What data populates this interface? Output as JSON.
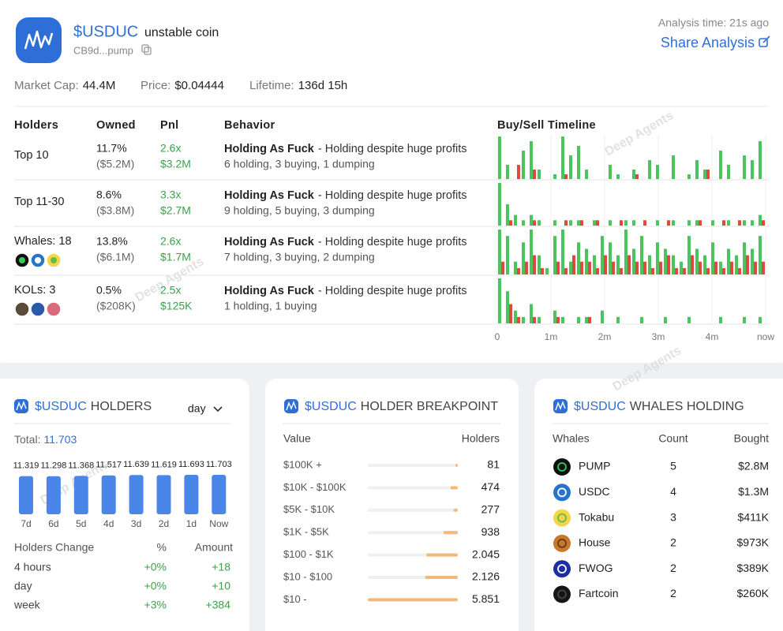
{
  "header": {
    "ticker": "$USDUC",
    "name": "unstable coin",
    "address": "CB9d...pump",
    "analysis_time": "Analysis time: 21s ago",
    "share": "Share Analysis"
  },
  "stats": [
    {
      "label": "Market Cap:",
      "value": "44.4M"
    },
    {
      "label": "Price:",
      "value": "$0.04444"
    },
    {
      "label": "Lifetime:",
      "value": "136d 15h"
    }
  ],
  "watermark": "Deep Agents",
  "holders_table": {
    "columns": [
      "Holders",
      "Owned",
      "Pnl",
      "Behavior",
      "Buy/Sell Timeline"
    ],
    "rows": [
      {
        "holder": "Top 10",
        "owned": "11.7%",
        "owned_usd": "($5.2M)",
        "pnl": "2.6x",
        "pnl_usd": "$3.2M",
        "behavior": "Holding As Fuck",
        "behavior_note": "- Holding despite huge profits",
        "activity": "6 holding, 3 buying, 1 dumping"
      },
      {
        "holder": "Top 11-30",
        "owned": "8.6%",
        "owned_usd": "($3.8M)",
        "pnl": "3.3x",
        "pnl_usd": "$2.7M",
        "behavior": "Holding As Fuck",
        "behavior_note": "- Holding despite huge profits",
        "activity": "9 holding, 5 buying, 3 dumping"
      },
      {
        "holder": "Whales: 18",
        "owned": "13.8%",
        "owned_usd": "($6.1M)",
        "pnl": "2.6x",
        "pnl_usd": "$1.7M",
        "behavior": "Holding As Fuck",
        "behavior_note": "- Holding despite huge profits",
        "activity": "7 holding, 3 buying, 2 dumping"
      },
      {
        "holder": "KOLs: 3",
        "owned": "0.5%",
        "owned_usd": "($208K)",
        "pnl": "2.5x",
        "pnl_usd": "$125K",
        "behavior": "Holding As Fuck",
        "behavior_note": "- Holding despite huge profits",
        "activity": "1 holding, 1 buying"
      }
    ],
    "timeline": {
      "type": "bar",
      "x_labels": [
        "0",
        "1m",
        "2m",
        "3m",
        "4m",
        "now"
      ],
      "buy_color": "#4cc45e",
      "sell_color": "#e0493d",
      "rows": [
        {
          "buy": [
            9,
            3,
            0,
            6,
            8,
            2,
            0,
            1,
            9,
            5,
            7,
            2,
            0,
            0,
            3,
            1,
            0,
            2,
            0,
            4,
            3,
            0,
            5,
            0,
            1,
            4,
            2,
            0,
            6,
            3,
            0,
            5,
            4,
            8
          ],
          "sell": [
            0,
            0,
            3,
            0,
            2,
            0,
            0,
            0,
            1,
            0,
            0,
            0,
            0,
            0,
            0,
            0,
            0,
            1,
            0,
            0,
            0,
            0,
            0,
            0,
            0,
            0,
            2,
            0,
            0,
            0,
            0,
            0,
            0,
            0
          ]
        },
        {
          "buy": [
            8,
            4,
            2,
            1,
            2,
            1,
            0,
            1,
            0,
            1,
            1,
            0,
            1,
            0,
            1,
            0,
            1,
            1,
            0,
            0,
            1,
            0,
            1,
            0,
            1,
            1,
            0,
            1,
            0,
            1,
            0,
            1,
            1,
            2
          ],
          "sell": [
            0,
            1,
            0,
            0,
            1,
            0,
            0,
            0,
            1,
            0,
            1,
            0,
            1,
            0,
            0,
            1,
            0,
            0,
            1,
            0,
            0,
            1,
            0,
            0,
            0,
            1,
            0,
            0,
            1,
            0,
            1,
            0,
            0,
            1
          ]
        },
        {
          "buy": [
            7,
            6,
            2,
            5,
            7,
            3,
            1,
            6,
            7,
            2,
            5,
            4,
            3,
            6,
            5,
            3,
            7,
            4,
            6,
            3,
            5,
            4,
            3,
            2,
            6,
            4,
            3,
            5,
            2,
            4,
            3,
            5,
            4,
            6
          ],
          "sell": [
            2,
            0,
            1,
            2,
            3,
            1,
            0,
            2,
            1,
            3,
            2,
            2,
            1,
            3,
            2,
            1,
            3,
            2,
            2,
            1,
            2,
            3,
            1,
            1,
            3,
            2,
            1,
            2,
            1,
            2,
            1,
            3,
            2,
            2
          ]
        },
        {
          "buy": [
            7,
            5,
            2,
            1,
            3,
            1,
            0,
            2,
            1,
            0,
            1,
            1,
            0,
            2,
            0,
            1,
            0,
            0,
            1,
            0,
            0,
            1,
            0,
            0,
            1,
            0,
            0,
            0,
            1,
            0,
            0,
            1,
            0,
            1
          ],
          "sell": [
            0,
            3,
            1,
            0,
            1,
            0,
            0,
            1,
            0,
            0,
            0,
            1,
            0,
            0,
            0,
            0,
            0,
            0,
            0,
            0,
            0,
            0,
            0,
            0,
            0,
            0,
            0,
            0,
            0,
            0,
            0,
            0,
            0,
            0
          ]
        }
      ]
    }
  },
  "holders_card": {
    "title_ticker": "$USDUC",
    "title": "HOLDERS",
    "period": "day",
    "total_label": "Total:",
    "total": "11.703",
    "chart": {
      "type": "bar",
      "categories": [
        "7d",
        "6d",
        "5d",
        "4d",
        "3d",
        "2d",
        "1d",
        "Now"
      ],
      "values": [
        11319,
        11298,
        11368,
        11517,
        11639,
        11619,
        11693,
        11703
      ],
      "value_labels": [
        "11.319",
        "11.298",
        "11.368",
        "11.517",
        "11.639",
        "11.619",
        "11.693",
        "11.703"
      ],
      "color": "#4a86e8"
    },
    "change": {
      "columns": [
        "Holders Change",
        "%",
        "Amount"
      ],
      "rows": [
        [
          "4 hours",
          "+0%",
          "+18"
        ],
        [
          "day",
          "+0%",
          "+10"
        ],
        [
          "week",
          "+3%",
          "+384"
        ]
      ]
    }
  },
  "breakpoint_card": {
    "title_ticker": "$USDUC",
    "title": "HOLDER BREAKPOINT",
    "columns": [
      "Value",
      "Holders"
    ],
    "bar_color": "#f4b87a",
    "rows": [
      {
        "range": "$100K +",
        "holders": 81
      },
      {
        "range": "$10K - $100K",
        "holders": 474
      },
      {
        "range": "$5K - $10K",
        "holders": 277
      },
      {
        "range": "$1K - $5K",
        "holders": 938
      },
      {
        "range": "$100 - $1K",
        "holders": 2045,
        "label": "2.045"
      },
      {
        "range": "$10 - $100",
        "holders": 2126,
        "label": "2.126"
      },
      {
        "range": "$10 -",
        "holders": 5851,
        "label": "5.851"
      }
    ]
  },
  "whales_card": {
    "title_ticker": "$USDUC",
    "title": "WHALES HOLDING",
    "columns": [
      "Whales",
      "Count",
      "Bought"
    ],
    "rows": [
      {
        "name": "PUMP",
        "count": 5,
        "bought": "$2.8M"
      },
      {
        "name": "USDC",
        "count": 4,
        "bought": "$1.3M"
      },
      {
        "name": "Tokabu",
        "count": 3,
        "bought": "$411K"
      },
      {
        "name": "House",
        "count": 2,
        "bought": "$973K"
      },
      {
        "name": "FWOG",
        "count": 2,
        "bought": "$389K"
      },
      {
        "name": "Fartcoin",
        "count": 2,
        "bought": "$260K"
      }
    ]
  }
}
